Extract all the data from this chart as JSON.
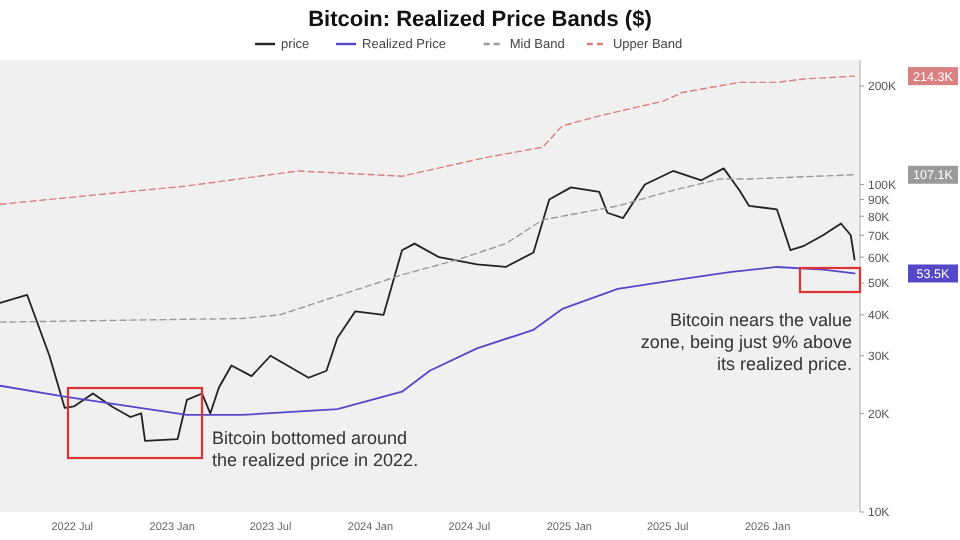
{
  "chart_data": {
    "type": "line",
    "title": "Bitcoin: Realized Price Bands ($)",
    "log": "y",
    "legend": "top",
    "xlim": [
      "2022-02-18",
      "2026-06-20"
    ],
    "ylim": [
      10000,
      240000
    ],
    "xticks": [
      {
        "value": "2022-07-01",
        "label": "2022 Jul"
      },
      {
        "value": "2023-01-01",
        "label": "2023 Jan"
      },
      {
        "value": "2023-07-01",
        "label": "2023 Jul"
      },
      {
        "value": "2024-01-01",
        "label": "2024 Jan"
      },
      {
        "value": "2024-07-01",
        "label": "2024 Jul"
      },
      {
        "value": "2025-01-01",
        "label": "2025 Jan"
      },
      {
        "value": "2025-07-01",
        "label": "2025 Jul"
      },
      {
        "value": "2026-01-01",
        "label": "2026 Jan"
      }
    ],
    "yticks": [
      {
        "value": 10000,
        "label": "10K"
      },
      {
        "value": 20000,
        "label": "20K"
      },
      {
        "value": 30000,
        "label": "30K"
      },
      {
        "value": 40000,
        "label": "40K"
      },
      {
        "value": 50000,
        "label": "50K"
      },
      {
        "value": 60000,
        "label": "60K"
      },
      {
        "value": 70000,
        "label": "70K"
      },
      {
        "value": 80000,
        "label": "80K"
      },
      {
        "value": 90000,
        "label": "90K"
      },
      {
        "value": 100000,
        "label": "100K"
      },
      {
        "value": 200000,
        "label": "200K"
      }
    ],
    "series": [
      {
        "name": "price",
        "color": "#222222",
        "line_style": "solid",
        "x": [
          "2022-02-18",
          "2022-04-09",
          "2022-05-20",
          "2022-06-17",
          "2022-07-04",
          "2022-08-08",
          "2022-09-12",
          "2022-10-16",
          "2022-11-05",
          "2022-11-12",
          "2023-01-11",
          "2023-01-28",
          "2023-02-25",
          "2023-03-12",
          "2023-03-28",
          "2023-04-20",
          "2023-05-27",
          "2023-07-01",
          "2023-09-09",
          "2023-10-12",
          "2023-11-01",
          "2023-12-04",
          "2024-01-25",
          "2024-02-28",
          "2024-03-22",
          "2024-05-06",
          "2024-07-15",
          "2024-09-06",
          "2024-10-27",
          "2024-11-25",
          "2025-01-04",
          "2025-02-25",
          "2025-03-12",
          "2025-04-10",
          "2025-05-20",
          "2025-07-11",
          "2025-09-01",
          "2025-10-12",
          "2025-11-10",
          "2025-11-28",
          "2026-01-18",
          "2026-02-12",
          "2026-03-09",
          "2026-04-13",
          "2026-05-16",
          "2026-06-03",
          "2026-06-10"
        ],
        "values": [
          43500,
          46000,
          30000,
          20800,
          21000,
          23000,
          21000,
          19500,
          20000,
          16500,
          16700,
          22000,
          23000,
          20000,
          24000,
          28000,
          26000,
          30000,
          25700,
          27000,
          34000,
          41000,
          40000,
          63000,
          66000,
          60000,
          57000,
          56000,
          62000,
          90000,
          98000,
          95000,
          82000,
          79000,
          100000,
          110000,
          103000,
          112000,
          96000,
          86000,
          84000,
          63000,
          65000,
          70000,
          76000,
          70000,
          59000
        ]
      },
      {
        "name": "Realized Price",
        "color": "#5548c8",
        "line_style": "solid",
        "x": [
          "2022-02-18",
          "2022-06-17",
          "2023-01-28",
          "2023-05-10",
          "2023-11-01",
          "2024-02-28",
          "2024-04-19",
          "2024-07-15",
          "2024-10-27",
          "2024-12-19",
          "2025-03-31",
          "2025-07-11",
          "2025-10-23",
          "2026-01-18",
          "2026-04-13",
          "2026-06-10"
        ],
        "values": [
          24300,
          22500,
          19800,
          19800,
          20600,
          23300,
          27000,
          31600,
          36000,
          41700,
          48000,
          51000,
          54000,
          56000,
          55000,
          53500
        ]
      },
      {
        "name": "Mid Band",
        "color": "#9a9a9a",
        "line_style": "dashed",
        "x": [
          "2022-02-18",
          "2023-05-10",
          "2023-07-18",
          "2024-02-28",
          "2024-06-10",
          "2024-09-06",
          "2024-11-13",
          "2025-03-31",
          "2025-07-11",
          "2025-10-06",
          "2025-11-28",
          "2026-06-10"
        ],
        "values": [
          38000,
          39000,
          40000,
          53000,
          59000,
          66000,
          78000,
          86000,
          96000,
          104000,
          104000,
          107100
        ]
      },
      {
        "name": "Upper Band",
        "color": "#d98080",
        "line_style": "dashed",
        "x": [
          "2022-02-18",
          "2023-01-28",
          "2023-08-21",
          "2024-02-28",
          "2024-08-01",
          "2024-11-13",
          "2024-12-19",
          "2025-02-25",
          "2025-06-24",
          "2025-07-28",
          "2025-11-10",
          "2026-01-18",
          "2026-03-09",
          "2026-06-10"
        ],
        "values": [
          87000,
          99000,
          110000,
          106000,
          121000,
          130000,
          151000,
          162000,
          180000,
          191000,
          205000,
          205000,
          210000,
          214300
        ]
      }
    ],
    "annotations": [
      "Bitcoin bottomed around\nthe realized price in 2022.",
      "Bitcoin nears the value\nzone, being just 9% above\nits realized price.",
      "214.3K",
      "107.1K",
      "53.5K"
    ]
  }
}
